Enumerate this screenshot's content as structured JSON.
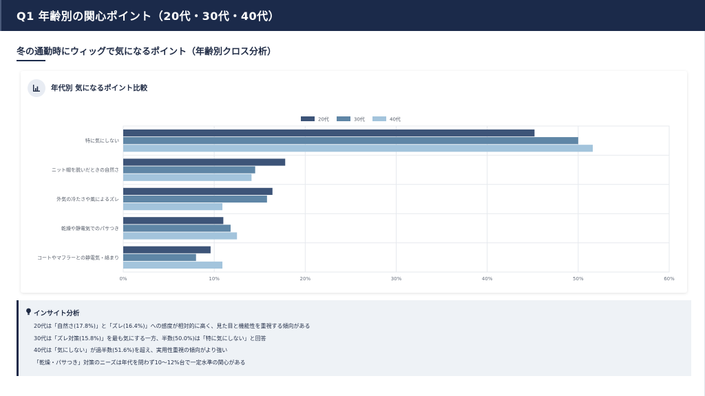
{
  "page": {
    "title": "Q1 年齢別の関心ポイント（20代・30代・40代）",
    "subtitle": "冬の通勤時にウィッグで気になるポイント（年齢別クロス分析）"
  },
  "card": {
    "title": "年代別 気になるポイント比較",
    "icon": "bar-chart-icon"
  },
  "chart_data": {
    "type": "bar",
    "orientation": "horizontal",
    "categories": [
      "特に気にしない",
      "ニット帽を脱いだときの自然さ",
      "外気の冷たさや風によるズレ",
      "乾燥や静電気でのパサつき",
      "コートやマフラーとの静電気・絡まり"
    ],
    "series": [
      {
        "name": "20代",
        "color": "#3d5478",
        "values": [
          45.2,
          17.8,
          16.4,
          11.0,
          9.6
        ]
      },
      {
        "name": "30代",
        "color": "#5f86a6",
        "values": [
          50.0,
          14.5,
          15.8,
          11.8,
          8.0
        ]
      },
      {
        "name": "40代",
        "color": "#a3c4dc",
        "values": [
          51.6,
          14.1,
          10.9,
          12.5,
          10.9
        ]
      }
    ],
    "xlim": [
      0,
      60
    ],
    "xticks": [
      "0%",
      "10%",
      "20%",
      "30%",
      "40%",
      "50%",
      "60%"
    ],
    "legend_position": "top",
    "grid": true
  },
  "insight": {
    "title": "インサイト分析",
    "icon": "lightbulb-icon",
    "items": [
      "20代は「自然さ(17.8%)」と「ズレ(16.4%)」への感度が相対的に高く、見た目と機能性を重視する傾向がある",
      "30代は「ズレ対策(15.8%)」を最も気にする一方、半数(50.0%)は「特に気にしない」と回答",
      "40代は「気にしない」が過半数(51.6%)を超え、実用性重視の傾向がより強い",
      "「乾燥・パサつき」対策のニーズは年代を問わず10〜12%台で一定水準の関心がある"
    ]
  }
}
